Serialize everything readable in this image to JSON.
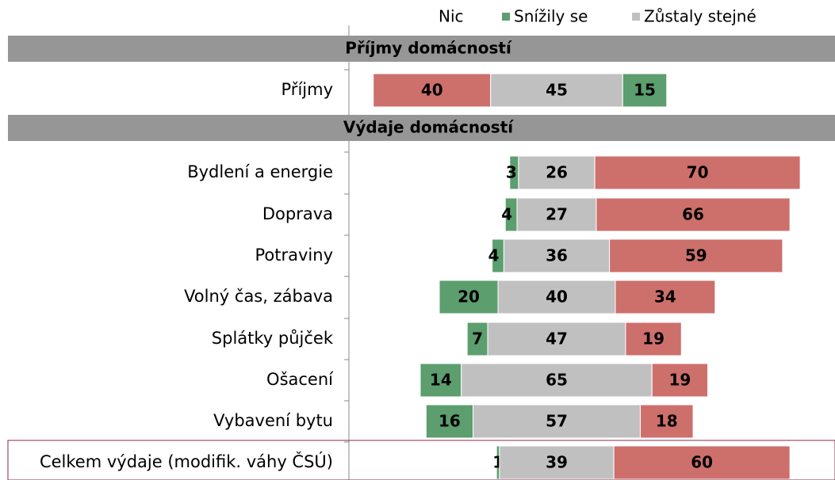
{
  "chart_data": {
    "type": "diverging-bar",
    "legend": [
      {
        "name": "Nic",
        "color": "#cd6f6b"
      },
      {
        "name": "Snížily se",
        "color": "#5c9e6e"
      },
      {
        "name": "Zůstaly stejné",
        "color": "#c0c0c0"
      }
    ],
    "sections": [
      {
        "title": "Příjmy domácností",
        "categories": [
          "Příjmy"
        ],
        "series": [
          {
            "color": "#cd6f6b",
            "values": [
              40
            ]
          },
          {
            "color": "#c0c0c0",
            "values": [
              45
            ]
          },
          {
            "color": "#5c9e6e",
            "values": [
              15
            ]
          }
        ]
      },
      {
        "title": "Výdaje domácností",
        "categories": [
          "Bydlení a energie",
          "Doprava",
          "Potraviny",
          "Volný čas, zábava",
          "Splátky půjček",
          "Ošacení",
          "Vybavení bytu",
          "Celkem výdaje (modifik. váhy ČSÚ)"
        ],
        "series": [
          {
            "color": "#5c9e6e",
            "values": [
              3,
              4,
              4,
              20,
              7,
              14,
              16,
              1
            ]
          },
          {
            "color": "#c0c0c0",
            "values": [
              26,
              27,
              36,
              40,
              47,
              65,
              57,
              39
            ]
          },
          {
            "color": "#cd6f6b",
            "values": [
              70,
              66,
              59,
              34,
              19,
              19,
              18,
              60
            ]
          }
        ]
      }
    ]
  }
}
